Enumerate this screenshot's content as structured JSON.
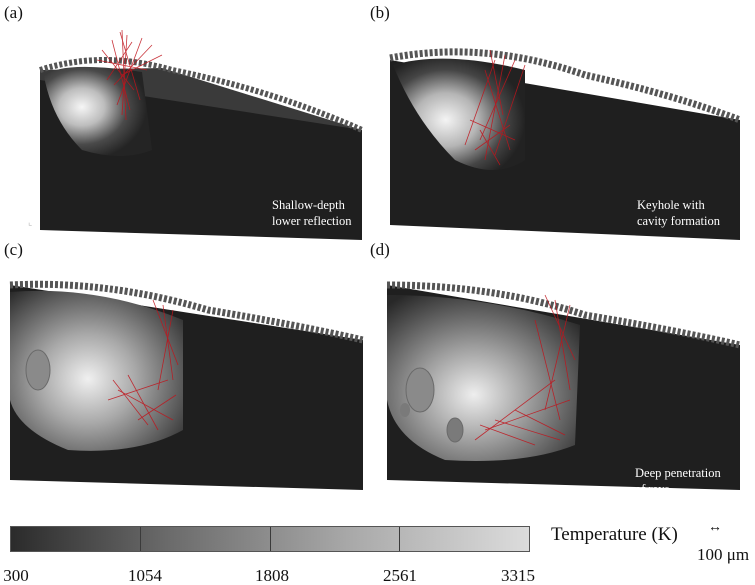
{
  "panels": [
    {
      "label": "(a)",
      "caption": [
        "Shallow-depth",
        "lower reflection"
      ]
    },
    {
      "label": "(b)",
      "caption": [
        "Keyhole with",
        "cavity formation"
      ]
    },
    {
      "label": "(c)",
      "caption": [
        "",
        ""
      ]
    },
    {
      "label": "(d)",
      "caption": [
        "Deep penetration",
        "of rays"
      ]
    }
  ],
  "colorbar": {
    "title": "Temperature (K)",
    "ticks": [
      "300",
      "1054",
      "1808",
      "2561",
      "3315"
    ]
  },
  "scale_bar": {
    "label": "100 μm",
    "arrow": "↔"
  },
  "colors": {
    "ray": "#c0141c",
    "block": "#1e1e1e",
    "hot": "#f4f4f4"
  }
}
